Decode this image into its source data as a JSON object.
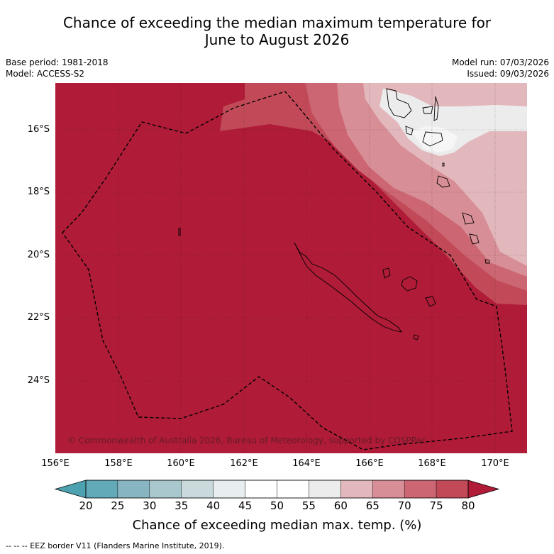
{
  "title": {
    "line1": "Chance of exceeding the median maximum temperature for",
    "line2": "June to August 2026"
  },
  "meta": {
    "base_period": "Base period: 1981-2018",
    "model": "Model: ACCESS-S2",
    "model_run": "Model run: 07/03/2026",
    "issued": "Issued: 09/03/2026"
  },
  "map": {
    "lat_labels": [
      "16°S",
      "18°S",
      "20°S",
      "22°S",
      "24°S"
    ],
    "lon_labels": [
      "156°E",
      "158°E",
      "160°E",
      "162°E",
      "164°E",
      "166°E",
      "168°E",
      "170°E"
    ],
    "copyright": "© Commonwealth of Australia 2026, Bureau of Meteorology, supported by COSPPac",
    "colors": {
      "c80": "#b01c38",
      "c75": "#c24a58",
      "c70": "#cc6672",
      "c65": "#d88e96",
      "c60": "#e2b8bc",
      "c55": "#ececec"
    }
  },
  "colorbar": {
    "ticks": [
      "20",
      "25",
      "30",
      "35",
      "40",
      "45",
      "50",
      "55",
      "60",
      "65",
      "70",
      "75",
      "80"
    ],
    "colors": [
      "#62aab8",
      "#87b6c2",
      "#a9c8cd",
      "#c9d9dc",
      "#e8eef0",
      "#ffffff",
      "#ffffff",
      "#ececec",
      "#e2b8bc",
      "#d88e96",
      "#cc6672",
      "#c24a58"
    ],
    "under_color": "#4da2b0",
    "over_color": "#b01c38",
    "label": "Chance of exceeding median max. temp. (%)"
  },
  "footer": "-- -- -- EEZ border V11 (Flanders Marine Institute, 2019)."
}
